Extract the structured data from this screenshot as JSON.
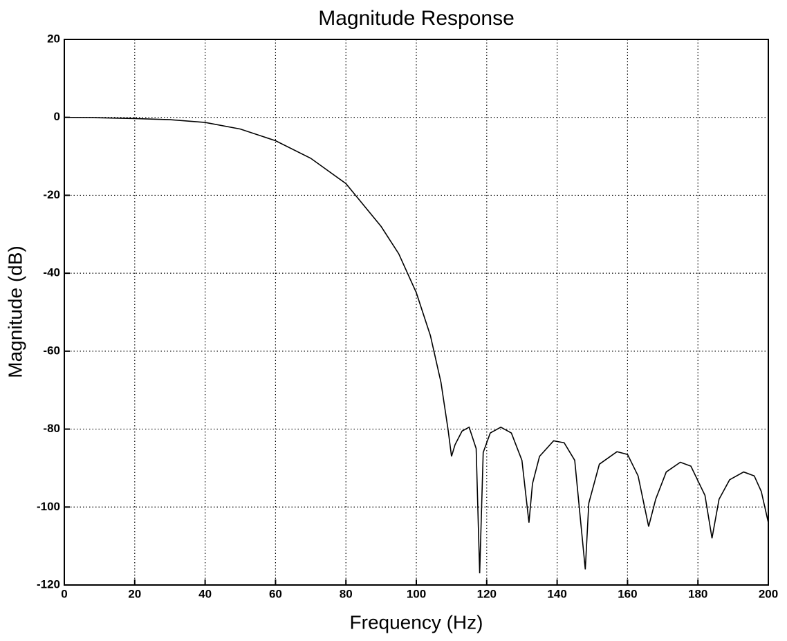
{
  "chart_data": {
    "type": "line",
    "title": "Magnitude Response",
    "xlabel": "Frequency (Hz)",
    "ylabel": "Magnitude (dB)",
    "x": [
      0,
      10,
      20,
      30,
      40,
      50,
      60,
      70,
      80,
      90,
      95,
      100,
      104,
      107,
      109,
      110,
      111,
      113,
      115,
      117,
      118,
      119,
      121,
      124,
      127,
      130,
      132,
      133,
      135,
      139,
      142,
      145,
      148,
      149,
      152,
      157,
      160,
      163,
      166,
      168,
      171,
      175,
      178,
      182,
      184,
      186,
      189,
      193,
      196,
      198,
      200
    ],
    "series": [
      {
        "name": "Magnitude",
        "color": "#000000",
        "values": [
          0,
          -0.1,
          -0.3,
          -0.6,
          -1.3,
          -3,
          -6,
          -10.5,
          -17,
          -28,
          -35,
          -45,
          -56,
          -68,
          -80,
          -87,
          -84,
          -80.5,
          -79.5,
          -85,
          -117,
          -86,
          -81,
          -79.5,
          -81,
          -88,
          -104,
          -94,
          -87,
          -83,
          -83.5,
          -88,
          -116,
          -99,
          -89,
          -85.8,
          -86.5,
          -92,
          -105,
          -98,
          -91,
          -88.5,
          -89.5,
          -97,
          -108,
          -98,
          -93,
          -91,
          -92,
          -96,
          -104
        ]
      }
    ],
    "xlim": [
      0,
      200
    ],
    "xticks": [
      0,
      20,
      40,
      60,
      80,
      100,
      120,
      140,
      160,
      180,
      200
    ],
    "ylim": [
      -120,
      20
    ],
    "yticks": [
      -120,
      -100,
      -80,
      -60,
      -40,
      -20,
      0,
      20
    ],
    "grid": true
  }
}
